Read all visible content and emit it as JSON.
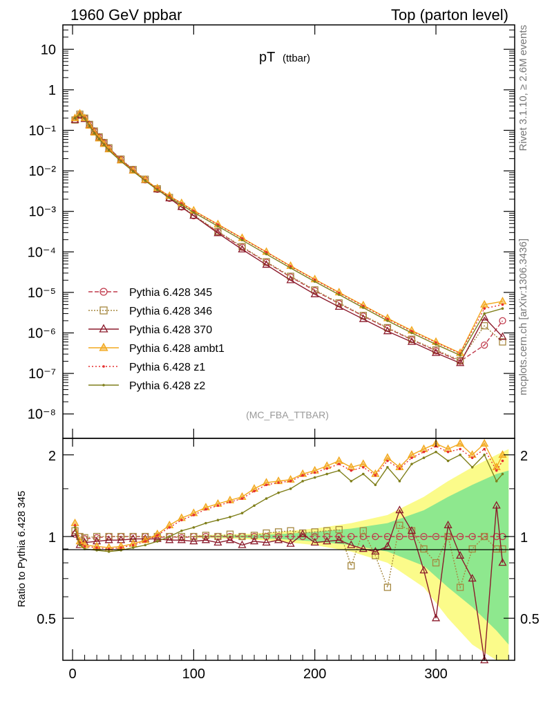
{
  "header": {
    "left": "1960 GeV ppbar",
    "right": "Top (parton level)"
  },
  "side": {
    "rivet": "Rivet 3.1.10, ≥ 2.6M events",
    "mcplots": "mcplots.cern.ch [arXiv:1306.3436]"
  },
  "chart_data": [
    {
      "panel": "main",
      "type": "line",
      "title": "pT",
      "title_sub": "(ttbar)",
      "analysis_label": "(MC_FBA_TTBAR)",
      "xlim": [
        -8,
        365
      ],
      "ylim": [
        2.5e-09,
        40
      ],
      "yscale": "log",
      "ytick_labels": [
        "10",
        "1",
        "10⁻¹",
        "10⁻²",
        "10⁻³",
        "10⁻⁴",
        "10⁻⁵",
        "10⁻⁶",
        "10⁻⁷",
        "10⁻⁸"
      ],
      "ytick_values": [
        10,
        1,
        0.1,
        0.01,
        0.001,
        0.0001,
        1e-05,
        1e-06,
        1e-07,
        1e-08
      ],
      "x": [
        2,
        6,
        10,
        14,
        18,
        22,
        26,
        30,
        40,
        50,
        60,
        70,
        80,
        90,
        100,
        120,
        140,
        160,
        180,
        200,
        220,
        240,
        260,
        280,
        300,
        320,
        340,
        355
      ],
      "series": [
        {
          "name": "Pythia 6.428 345",
          "color": "#c0394b",
          "dash": "6,3",
          "marker": "circle",
          "values": [
            0.18,
            0.24,
            0.2,
            0.14,
            0.095,
            0.068,
            0.049,
            0.036,
            0.019,
            0.0105,
            0.006,
            0.0035,
            0.0021,
            0.00128,
            0.00078,
            0.00031,
            0.00013,
            5.5e-05,
            2.4e-05,
            1.1e-05,
            5.3e-06,
            2.6e-06,
            1.3e-06,
            6.8e-07,
            3.6e-07,
            2e-07,
            5e-07,
            2e-06
          ]
        },
        {
          "name": "Pythia 6.428 346",
          "color": "#a5873f",
          "dash": "2,2",
          "marker": "square",
          "values": [
            0.18,
            0.25,
            0.2,
            0.14,
            0.096,
            0.069,
            0.05,
            0.037,
            0.0195,
            0.0108,
            0.0062,
            0.0036,
            0.0022,
            0.00133,
            0.00081,
            0.00032,
            0.000135,
            5.7e-05,
            2.5e-05,
            1.15e-05,
            5.5e-06,
            2.7e-06,
            1.35e-06,
            7e-07,
            3.8e-07,
            2.1e-07,
            1.5e-06,
            6e-07
          ]
        },
        {
          "name": "Pythia 6.428 370",
          "color": "#8b1a2b",
          "dash": "",
          "marker": "triangle-open",
          "values": [
            0.18,
            0.23,
            0.19,
            0.135,
            0.092,
            0.066,
            0.048,
            0.035,
            0.0185,
            0.0103,
            0.0059,
            0.0035,
            0.0021,
            0.00128,
            0.00078,
            0.00029,
            0.000115,
            4.8e-05,
            2e-05,
            9e-06,
            4.4e-06,
            2.2e-06,
            1.1e-06,
            6e-07,
            3.2e-07,
            1.8e-07,
            2.4e-06,
            8e-07
          ]
        },
        {
          "name": "Pythia 6.428 ambt1",
          "color": "#f2a81d",
          "dash": "",
          "marker": "triangle-fill",
          "values": [
            0.2,
            0.26,
            0.2,
            0.13,
            0.088,
            0.063,
            0.046,
            0.034,
            0.018,
            0.0101,
            0.006,
            0.0037,
            0.0024,
            0.0016,
            0.00105,
            0.00048,
            0.00022,
            0.0001,
            4.5e-05,
            2.1e-05,
            1e-05,
            4.8e-06,
            2.3e-06,
            1.15e-06,
            6e-07,
            3.2e-07,
            5e-06,
            6e-06
          ]
        },
        {
          "name": "Pythia 6.428 z1",
          "color": "#e62e2e",
          "dash": "2,3",
          "marker": "dot",
          "values": [
            0.2,
            0.255,
            0.2,
            0.13,
            0.087,
            0.062,
            0.045,
            0.033,
            0.0178,
            0.01,
            0.0059,
            0.0036,
            0.00235,
            0.00157,
            0.00102,
            0.00047,
            0.000215,
            9.8e-05,
            4.4e-05,
            2.05e-05,
            9.7e-06,
            4.6e-06,
            2.2e-06,
            1.1e-06,
            5.8e-07,
            3.1e-07,
            4e-06,
            5e-06
          ]
        },
        {
          "name": "Pythia 6.428 z2",
          "color": "#7f7f1a",
          "dash": "",
          "marker": "dot",
          "values": [
            0.2,
            0.25,
            0.195,
            0.128,
            0.085,
            0.061,
            0.044,
            0.032,
            0.0172,
            0.0097,
            0.0057,
            0.0034,
            0.0022,
            0.00145,
            0.00094,
            0.00043,
            0.000195,
            8.8e-05,
            4e-05,
            1.85e-05,
            8.8e-06,
            4.2e-06,
            2e-06,
            1e-06,
            5.2e-07,
            2.8e-07,
            3e-06,
            4e-06
          ]
        }
      ]
    },
    {
      "panel": "ratio",
      "type": "line",
      "ylabel": "Ratio to Pythia 6.428 345",
      "xlim": [
        -8,
        365
      ],
      "ylim": [
        0.35,
        2.3
      ],
      "yscale": "log",
      "ytick_labels": [
        "0.5",
        "1",
        "2"
      ],
      "ytick_values": [
        0.5,
        1,
        2
      ],
      "xtick_labels": [
        "0",
        "100",
        "200",
        "300"
      ],
      "xtick_values": [
        0,
        100,
        200,
        300
      ],
      "x": [
        2,
        6,
        10,
        20,
        30,
        40,
        50,
        60,
        70,
        80,
        90,
        100,
        110,
        120,
        130,
        140,
        150,
        160,
        170,
        180,
        190,
        200,
        210,
        220,
        230,
        240,
        250,
        260,
        270,
        280,
        290,
        300,
        310,
        320,
        330,
        340,
        350,
        355
      ],
      "band_yellow": {
        "x": [
          100,
          140,
          170,
          200,
          230,
          260,
          290,
          310,
          330,
          350,
          360
        ],
        "lo": [
          0.99,
          0.98,
          0.96,
          0.93,
          0.88,
          0.8,
          0.65,
          0.5,
          0.4,
          0.35,
          0.35
        ],
        "hi": [
          1.01,
          1.02,
          1.04,
          1.07,
          1.12,
          1.2,
          1.4,
          1.6,
          1.8,
          2.0,
          2.1
        ]
      },
      "band_green": {
        "x": [
          100,
          140,
          170,
          200,
          230,
          260,
          290,
          310,
          330,
          350,
          360
        ],
        "lo": [
          0.995,
          0.99,
          0.98,
          0.96,
          0.93,
          0.88,
          0.78,
          0.65,
          0.55,
          0.45,
          0.4
        ],
        "hi": [
          1.005,
          1.01,
          1.02,
          1.04,
          1.07,
          1.12,
          1.25,
          1.4,
          1.55,
          1.7,
          1.75
        ]
      },
      "series": [
        {
          "name": "Pythia 6.428 345",
          "color": "#c0394b",
          "dash": "6,3",
          "marker": "circle",
          "values": [
            1.02,
            1.0,
            0.98,
            0.99,
            1.0,
            1.0,
            1.0,
            1.0,
            0.99,
            1.0,
            0.99,
            1.0,
            1.0,
            1.0,
            1.0,
            1.0,
            1.0,
            1.0,
            1.0,
            1.0,
            1.0,
            1.0,
            1.0,
            1.0,
            1.0,
            1.0,
            1.0,
            1.0,
            1.0,
            1.0,
            1.0,
            1.0,
            1.0,
            1.0,
            1.0,
            1.0,
            1.0,
            1.0
          ]
        },
        {
          "name": "Pythia 6.428 346",
          "color": "#a5873f",
          "dash": "2,2",
          "marker": "square",
          "values": [
            1.05,
            1.0,
            0.99,
            1.0,
            1.0,
            1.0,
            1.0,
            1.0,
            1.0,
            1.0,
            1.0,
            1.0,
            1.01,
            1.0,
            1.02,
            1.0,
            1.01,
            1.03,
            1.04,
            1.05,
            1.03,
            1.04,
            1.05,
            1.06,
            0.78,
            1.05,
            0.85,
            0.65,
            1.1,
            1.05,
            0.9,
            0.8,
            1.0,
            0.65,
            0.9,
            1.0,
            0.9,
            0.9
          ]
        },
        {
          "name": "Pythia 6.428 370",
          "color": "#8b1a2b",
          "dash": "",
          "marker": "triangle-open",
          "values": [
            1.03,
            0.93,
            0.95,
            0.96,
            0.97,
            0.97,
            0.98,
            0.98,
            0.98,
            0.97,
            0.97,
            0.96,
            0.97,
            0.95,
            0.97,
            0.93,
            0.96,
            0.95,
            0.97,
            0.94,
            1.02,
            0.95,
            0.96,
            0.97,
            0.93,
            0.9,
            0.88,
            0.92,
            1.25,
            1.05,
            0.75,
            0.5,
            1.1,
            0.85,
            0.7,
            0.35,
            1.3,
            0.8
          ]
        },
        {
          "name": "Pythia 6.428 ambt1",
          "color": "#f2a81d",
          "dash": "",
          "marker": "triangle-fill",
          "values": [
            1.12,
            0.96,
            0.93,
            0.92,
            0.91,
            0.92,
            0.94,
            0.97,
            1.02,
            1.1,
            1.17,
            1.22,
            1.28,
            1.32,
            1.36,
            1.4,
            1.5,
            1.58,
            1.6,
            1.62,
            1.7,
            1.75,
            1.82,
            1.9,
            1.8,
            1.85,
            1.7,
            1.95,
            1.8,
            2.0,
            2.1,
            2.2,
            2.1,
            2.2,
            2.0,
            2.2,
            1.8,
            2.0
          ]
        },
        {
          "name": "Pythia 6.428 z1",
          "color": "#e62e2e",
          "dash": "2,3",
          "marker": "dot",
          "values": [
            1.1,
            0.95,
            0.92,
            0.91,
            0.9,
            0.91,
            0.93,
            0.96,
            1.01,
            1.08,
            1.15,
            1.2,
            1.26,
            1.3,
            1.34,
            1.38,
            1.47,
            1.55,
            1.58,
            1.6,
            1.68,
            1.72,
            1.78,
            1.85,
            1.75,
            1.8,
            1.68,
            1.9,
            1.78,
            1.95,
            2.05,
            2.15,
            2.05,
            2.1,
            1.95,
            2.1,
            1.75,
            1.9
          ]
        },
        {
          "name": "Pythia 6.428 z2",
          "color": "#7f7f1a",
          "dash": "",
          "marker": "dot",
          "values": [
            1.08,
            0.93,
            0.9,
            0.89,
            0.88,
            0.89,
            0.91,
            0.93,
            0.96,
            1.0,
            1.05,
            1.08,
            1.12,
            1.15,
            1.18,
            1.22,
            1.3,
            1.38,
            1.45,
            1.5,
            1.6,
            1.65,
            1.7,
            1.75,
            1.6,
            1.7,
            1.55,
            1.8,
            1.6,
            1.85,
            1.95,
            2.05,
            1.9,
            2.0,
            1.8,
            2.0,
            1.6,
            1.7
          ]
        }
      ]
    }
  ]
}
